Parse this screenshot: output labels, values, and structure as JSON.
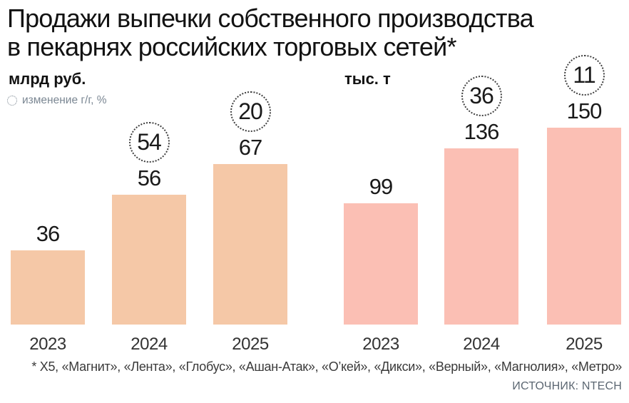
{
  "title": {
    "line1": "Продажи выпечки собственного производства",
    "line2": "в пекарнях российских торговых сетей*"
  },
  "legend": {
    "label": "изменение г/г, %"
  },
  "footnote": "* X5, «Магнит», «Лента», «Глобус», «Ашан-Атак», «О’кей», «Дикси», «Верный», «Магнолия», «Метро»",
  "source": "ИСТОЧНИК: NTECH",
  "colors": {
    "left_bars": "#F5C8A7",
    "right_bars": "#FBBFB4",
    "legend_text": "#7B8793",
    "badge_border": "#3F3F3F",
    "title_text": "#121212"
  },
  "chart_data": [
    {
      "type": "bar",
      "unit": "млрд руб.",
      "categories": [
        "2023",
        "2024",
        "2025"
      ],
      "values": [
        36,
        56,
        67
      ],
      "change_pct": [
        null,
        54,
        20
      ],
      "bar_color": "#F5C8A7",
      "value_labels_shown": true,
      "grid": false,
      "legend_position": "top-left"
    },
    {
      "type": "bar",
      "unit": "тыс. т",
      "categories": [
        "2023",
        "2024",
        "2025"
      ],
      "values": [
        99,
        136,
        150
      ],
      "change_pct": [
        null,
        36,
        11
      ],
      "bar_color": "#FBBFB4",
      "value_labels_shown": true,
      "grid": false,
      "legend_position": "top-left"
    }
  ]
}
